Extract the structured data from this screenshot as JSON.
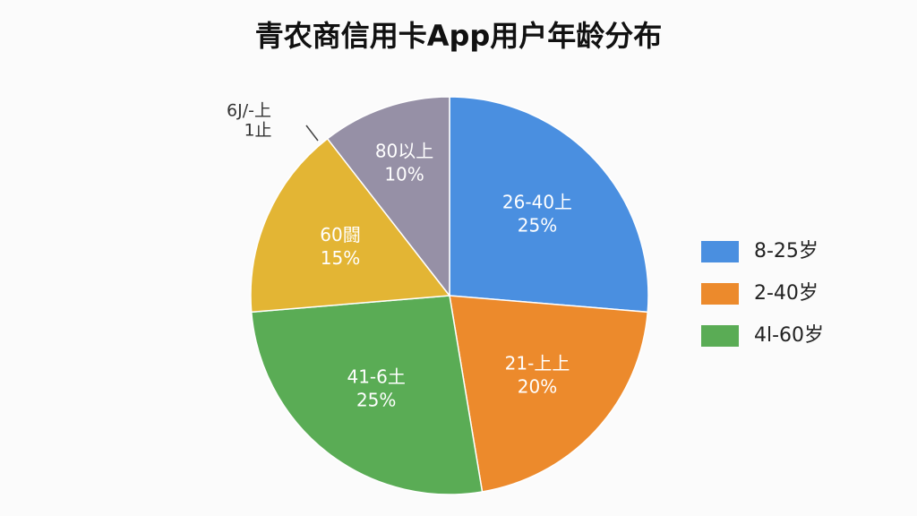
{
  "chart_data": {
    "type": "pie",
    "title": "青农商信用卡App用户年龄分布",
    "categories": [
      "26-40上",
      "21-上上",
      "41-6土",
      "60闘",
      "80以上"
    ],
    "values": [
      25,
      20,
      25,
      15,
      10
    ],
    "value_labels": [
      "25%",
      "20%",
      "25%",
      "15%",
      "10%"
    ],
    "colors": [
      "#4a8fe0",
      "#ec8a2c",
      "#5aac55",
      "#e3b534",
      "#9690a6"
    ],
    "legend": [
      {
        "name": "8-25岁",
        "color": "#4a8fe0"
      },
      {
        "name": "2-40岁",
        "color": "#ec8a2c"
      },
      {
        "name": "4l-60岁",
        "color": "#5aac55"
      }
    ],
    "annotation": [
      "6J/-上",
      "1止"
    ]
  }
}
